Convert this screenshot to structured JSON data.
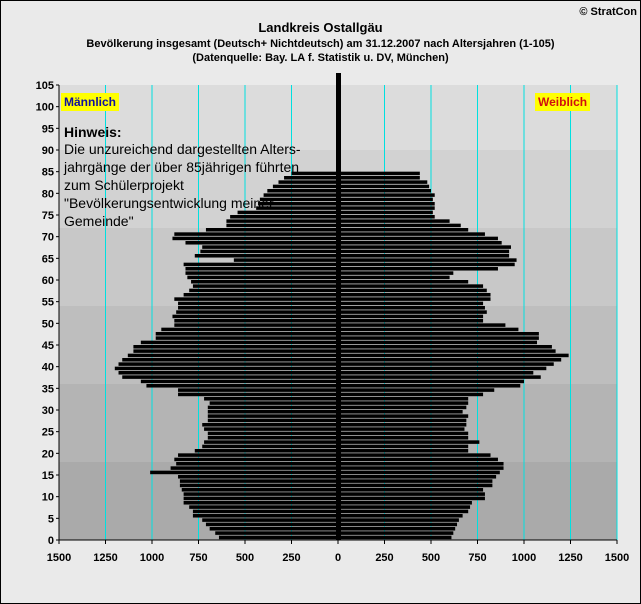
{
  "header": {
    "title": "Landkreis Ostallgäu",
    "subtitle": "Bevölkerung  insgesamt (Deutsch+ Nichtdeutsch) am 31.12.2007 nach Altersjahren (1-105)",
    "source": "(Datenquelle: Bay. LA f. Statistik u. DV, München)",
    "copyright": "© StratCon"
  },
  "note": {
    "title": "Hinweis:",
    "body": "Die unzureichend dargestellten Alters-jahrgänge der über 85jährigen führten zum Schülerprojekt \"Bevölkerungsentwicklung meiner Gemeinde\""
  },
  "colors": {
    "background_bands": [
      "#aaaaaa",
      "#b4b4b4",
      "#bebebe",
      "#c8c8c8",
      "#d2d2d2",
      "#dcdcdc",
      "#e6e6e6",
      "#ececec",
      "#f2f2f2",
      "#f8f8f8"
    ],
    "bar": "#000000",
    "gridline": "#00e0e0",
    "legend_bg": "#ffff00"
  },
  "chart_data": {
    "type": "bar",
    "orientation": "horizontal-pyramid",
    "x_ticks": [
      "1500",
      "1250",
      "1000",
      "750",
      "500",
      "250",
      "0",
      "250",
      "500",
      "750",
      "1000",
      "1250",
      "1500"
    ],
    "y_ticks": [
      "0",
      "5",
      "10",
      "15",
      "20",
      "25",
      "30",
      "35",
      "40",
      "45",
      "50",
      "55",
      "60",
      "65",
      "70",
      "75",
      "80",
      "85",
      "90",
      "95",
      "100",
      "105"
    ],
    "xlim": [
      -1500,
      1500
    ],
    "ylim": [
      0,
      105
    ],
    "grid": true,
    "legend": [
      "Männlich",
      "Weiblich"
    ],
    "ages": [
      1,
      2,
      3,
      4,
      5,
      6,
      7,
      8,
      9,
      10,
      11,
      12,
      13,
      14,
      15,
      16,
      17,
      18,
      19,
      20,
      21,
      22,
      23,
      24,
      25,
      26,
      27,
      28,
      29,
      30,
      31,
      32,
      33,
      34,
      35,
      36,
      37,
      38,
      39,
      40,
      41,
      42,
      43,
      44,
      45,
      46,
      47,
      48,
      49,
      50,
      51,
      52,
      53,
      54,
      55,
      56,
      57,
      58,
      59,
      60,
      61,
      62,
      63,
      64,
      65,
      66,
      67,
      68,
      69,
      70,
      71,
      72,
      73,
      74,
      75,
      76,
      77,
      78,
      79,
      80,
      81,
      82,
      83,
      84,
      85
    ],
    "series": [
      {
        "name": "Männlich",
        "values": [
          640,
          660,
          690,
          710,
          730,
          780,
          780,
          800,
          830,
          830,
          830,
          840,
          850,
          850,
          860,
          1010,
          900,
          870,
          880,
          860,
          770,
          730,
          720,
          700,
          700,
          720,
          730,
          700,
          700,
          700,
          700,
          690,
          720,
          860,
          860,
          1030,
          1060,
          1160,
          1180,
          1200,
          1180,
          1160,
          1130,
          1100,
          1100,
          1060,
          980,
          980,
          950,
          880,
          880,
          890,
          870,
          860,
          860,
          880,
          830,
          800,
          780,
          790,
          810,
          820,
          820,
          830,
          560,
          770,
          740,
          730,
          820,
          890,
          880,
          710,
          600,
          600,
          580,
          540,
          440,
          430,
          420,
          400,
          380,
          350,
          320,
          290,
          250
        ]
      },
      {
        "name": "Weiblich",
        "values": [
          610,
          620,
          630,
          640,
          650,
          670,
          700,
          710,
          720,
          790,
          790,
          780,
          830,
          830,
          850,
          870,
          890,
          890,
          860,
          820,
          700,
          700,
          760,
          700,
          700,
          680,
          690,
          690,
          700,
          670,
          690,
          700,
          700,
          780,
          840,
          980,
          1000,
          1090,
          1050,
          1120,
          1160,
          1200,
          1240,
          1170,
          1150,
          1070,
          1080,
          1080,
          970,
          900,
          780,
          780,
          800,
          790,
          780,
          820,
          820,
          800,
          780,
          700,
          600,
          620,
          860,
          950,
          960,
          920,
          920,
          930,
          880,
          860,
          790,
          700,
          660,
          600,
          520,
          510,
          520,
          520,
          510,
          520,
          500,
          490,
          480,
          440,
          440
        ]
      }
    ]
  }
}
